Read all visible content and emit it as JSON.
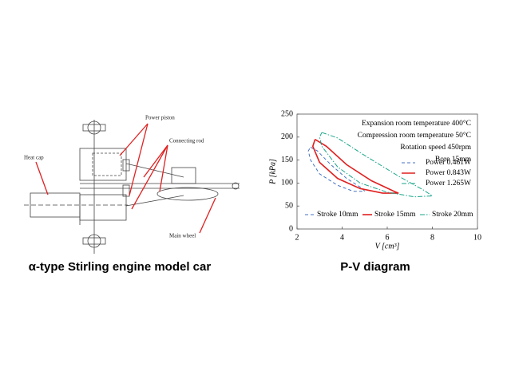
{
  "diagram": {
    "labels": {
      "power_piston": "Power piston",
      "connecting_rod": "Connecting rod",
      "heat_cap": "Heat cap",
      "main_wheel": "Main wheel"
    },
    "caption": "α-type Stirling engine model car"
  },
  "chart_data": {
    "type": "line",
    "caption": "P-V diagram",
    "xlabel": "V [cm³]",
    "ylabel": "P [kPa]",
    "xlim": [
      2,
      10
    ],
    "xticks": [
      2,
      4,
      6,
      8,
      10
    ],
    "ylim": [
      0,
      250
    ],
    "yticks": [
      0,
      50,
      100,
      150,
      200,
      250
    ],
    "annotations": [
      "Expansion room temperature   400°C",
      "Compression room temperature   50°C",
      "Rotation speed 450rpm",
      "Bore 15mm"
    ],
    "series": [
      {
        "name": "Stroke 10mm",
        "power": "Power 0.461W",
        "color": "#4472c4",
        "style": "dashed",
        "x": [
          2.6,
          2.9,
          3.5,
          4.2,
          4.9,
          5.0,
          4.5,
          3.8,
          3.0,
          2.6,
          2.5,
          2.6
        ],
        "values": [
          178,
          170,
          140,
          110,
          88,
          82,
          82,
          95,
          120,
          150,
          170,
          178
        ]
      },
      {
        "name": "Stroke 15mm",
        "power": "Power 0.843W",
        "color": "#e02020",
        "style": "solid",
        "x": [
          2.8,
          3.3,
          4.2,
          5.3,
          6.3,
          6.5,
          5.8,
          4.8,
          3.8,
          3.0,
          2.7,
          2.8
        ],
        "values": [
          195,
          180,
          140,
          105,
          82,
          78,
          78,
          88,
          110,
          145,
          180,
          195
        ]
      },
      {
        "name": "Stroke 20mm",
        "power": "Power 1.265W",
        "color": "#1aa58a",
        "style": "dash-dot",
        "x": [
          3.1,
          3.8,
          5.0,
          6.5,
          7.6,
          8.0,
          7.2,
          6.0,
          4.8,
          3.8,
          3.1,
          3.0,
          3.1
        ],
        "values": [
          210,
          198,
          160,
          115,
          85,
          72,
          70,
          80,
          100,
          135,
          180,
          200,
          210
        ]
      }
    ]
  }
}
